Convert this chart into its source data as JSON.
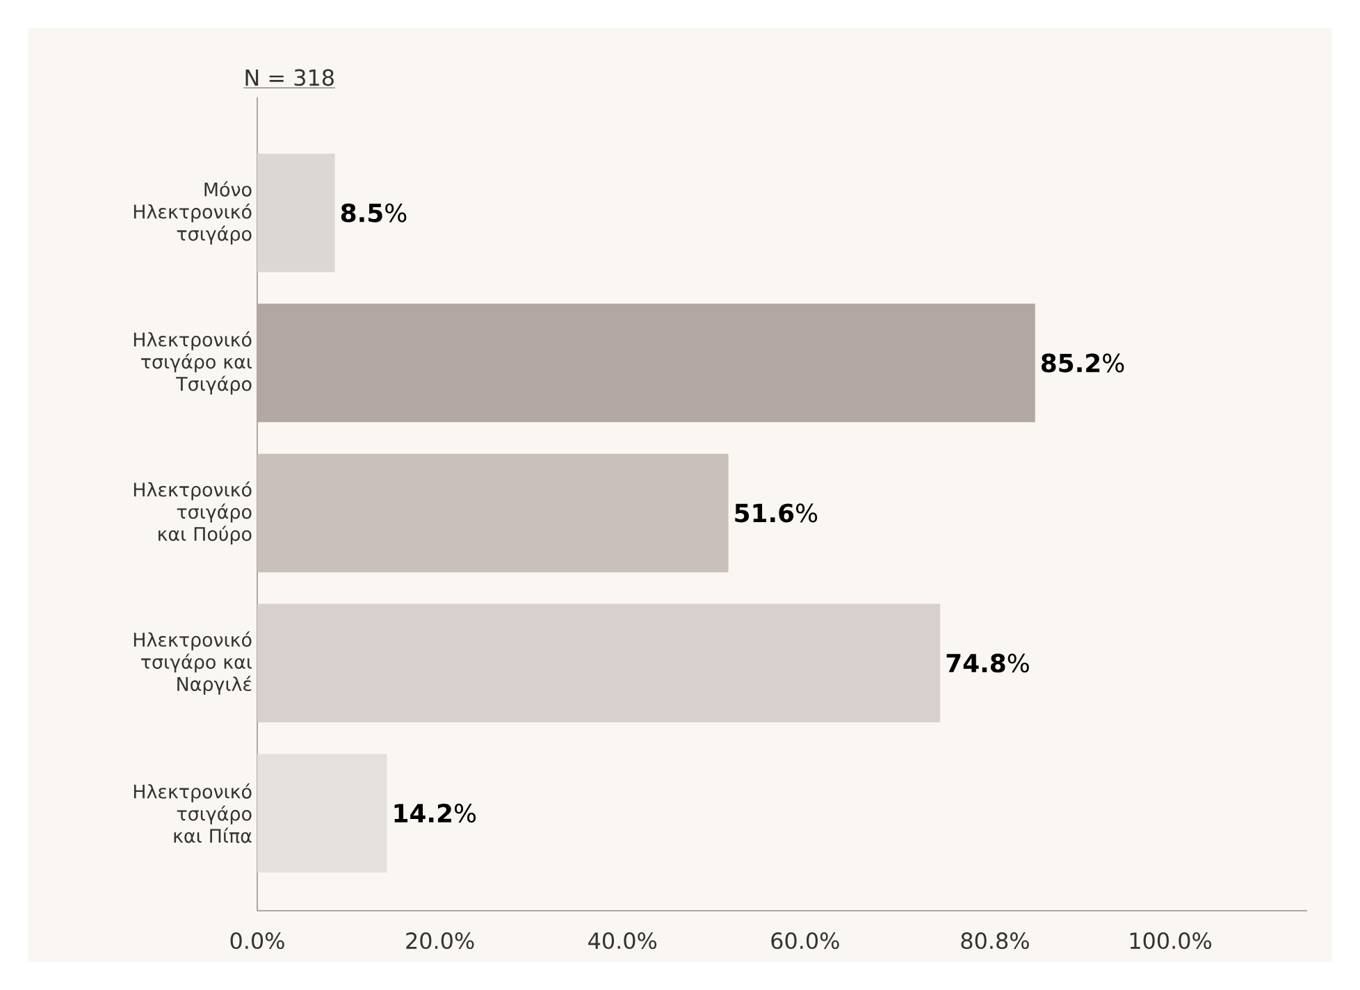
{
  "chart_data": {
    "type": "bar",
    "orientation": "horizontal",
    "title": "N = 318",
    "categories": [
      "Μόνο Ηλεκτρονικό τσιγάρο",
      "Ηλεκτρονικό τσιγάρο και Τσιγάρο",
      "Ηλεκτρονικό τσιγάρο και Πούρο",
      "Ηλεκτρονικό τσιγάρο και Ναργιλέ",
      "Ηλεκτρονικό τσιγάρο και Πίπα"
    ],
    "values": [
      8.5,
      85.2,
      51.6,
      74.8,
      14.2
    ],
    "colors": [
      "#dcd7d3",
      "#b3a7a3",
      "#c9bfbb",
      "#d8d0cc",
      "#e4e0dd"
    ],
    "value_labels": [
      "**8.5**%",
      "**85.2**%",
      "**51.6**%",
      "**74.8**%",
      "**14.2**%"
    ],
    "xlim": [
      0,
      115
    ],
    "xticks": [
      {
        "value": 0,
        "label": "0.0%"
      },
      {
        "value": 20,
        "label": "20.0%"
      },
      {
        "value": 40,
        "label": "40.0%"
      },
      {
        "value": 60,
        "label": "60.0%"
      },
      {
        "value": 80.8,
        "label": "80.8%"
      },
      {
        "value": 100,
        "label": "100.0%"
      }
    ],
    "grid": false
  }
}
